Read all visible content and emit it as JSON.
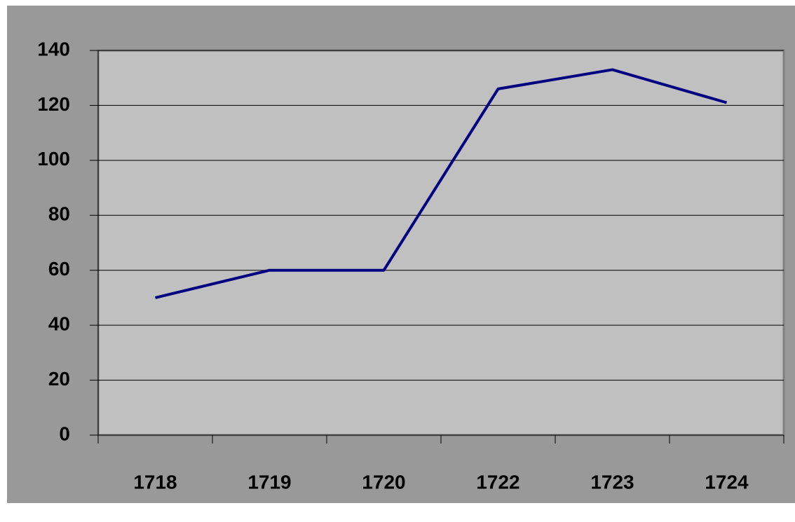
{
  "chart_data": {
    "type": "line",
    "categories": [
      "1718",
      "1719",
      "1720",
      "1722",
      "1723",
      "1724"
    ],
    "series": [
      {
        "color": "#000080",
        "values": [
          50,
          60,
          60,
          126,
          133,
          121
        ]
      }
    ],
    "ylim": [
      0,
      140
    ],
    "yticks": [
      0,
      20,
      40,
      60,
      80,
      100,
      120,
      140
    ],
    "grid": true
  }
}
